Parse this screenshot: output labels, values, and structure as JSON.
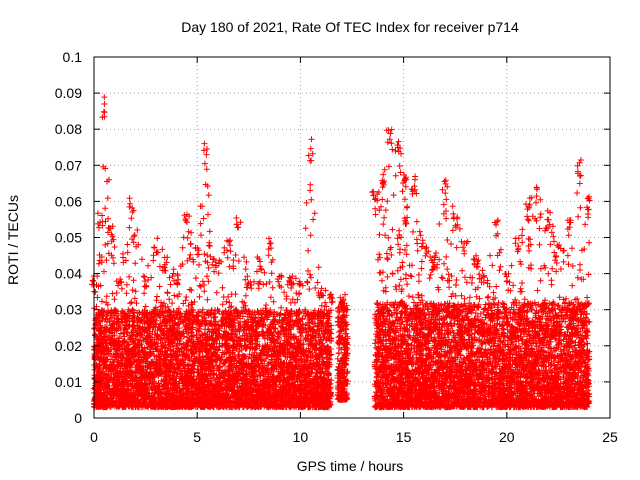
{
  "chart_data": {
    "type": "scatter",
    "title": "Day 180 of 2021, Rate Of TEC Index for receiver p714",
    "xlabel": "GPS time / hours",
    "ylabel": "ROTI / TECUs",
    "xlim": [
      0,
      25
    ],
    "ylim": [
      0,
      0.1
    ],
    "x_ticks": [
      "0",
      "5",
      "10",
      "15",
      "20",
      "25"
    ],
    "y_ticks": [
      "0",
      "0.01",
      "0.02",
      "0.03",
      "0.04",
      "0.05",
      "0.06",
      "0.07",
      "0.08",
      "0.09",
      "0.1"
    ],
    "grid": true,
    "marker": "plus",
    "color": "#ff0000",
    "segments": [
      {
        "x_range": [
          0.0,
          11.5
        ],
        "y_typical": [
          0.003,
          0.03
        ]
      },
      {
        "x_range": [
          11.8,
          12.3
        ],
        "y_typical": [
          0.005,
          0.032
        ]
      },
      {
        "x_range": [
          13.6,
          24.0
        ],
        "y_typical": [
          0.003,
          0.032
        ]
      }
    ],
    "envelope": [
      [
        0.0,
        0.04
      ],
      [
        0.3,
        0.057
      ],
      [
        0.5,
        0.091
      ],
      [
        0.8,
        0.057
      ],
      [
        1.2,
        0.04
      ],
      [
        1.8,
        0.061
      ],
      [
        2.5,
        0.04
      ],
      [
        3.0,
        0.05
      ],
      [
        3.5,
        0.045
      ],
      [
        4.0,
        0.04
      ],
      [
        4.5,
        0.057
      ],
      [
        5.0,
        0.05
      ],
      [
        5.4,
        0.076
      ],
      [
        5.8,
        0.045
      ],
      [
        6.5,
        0.05
      ],
      [
        7.0,
        0.056
      ],
      [
        7.5,
        0.04
      ],
      [
        8.0,
        0.045
      ],
      [
        8.5,
        0.05
      ],
      [
        9.0,
        0.04
      ],
      [
        9.5,
        0.04
      ],
      [
        10.0,
        0.038
      ],
      [
        10.5,
        0.078
      ],
      [
        11.0,
        0.036
      ],
      [
        11.5,
        0.035
      ],
      [
        12.0,
        0.034
      ],
      [
        13.6,
        0.063
      ],
      [
        14.0,
        0.069
      ],
      [
        14.3,
        0.08
      ],
      [
        14.8,
        0.077
      ],
      [
        15.0,
        0.069
      ],
      [
        15.5,
        0.068
      ],
      [
        16.0,
        0.048
      ],
      [
        16.5,
        0.045
      ],
      [
        17.0,
        0.067
      ],
      [
        17.5,
        0.058
      ],
      [
        18.0,
        0.05
      ],
      [
        18.5,
        0.045
      ],
      [
        19.0,
        0.04
      ],
      [
        19.5,
        0.056
      ],
      [
        20.0,
        0.04
      ],
      [
        20.5,
        0.05
      ],
      [
        21.0,
        0.06
      ],
      [
        21.5,
        0.065
      ],
      [
        22.0,
        0.058
      ],
      [
        22.5,
        0.048
      ],
      [
        23.0,
        0.055
      ],
      [
        23.5,
        0.072
      ],
      [
        24.0,
        0.062
      ]
    ]
  }
}
